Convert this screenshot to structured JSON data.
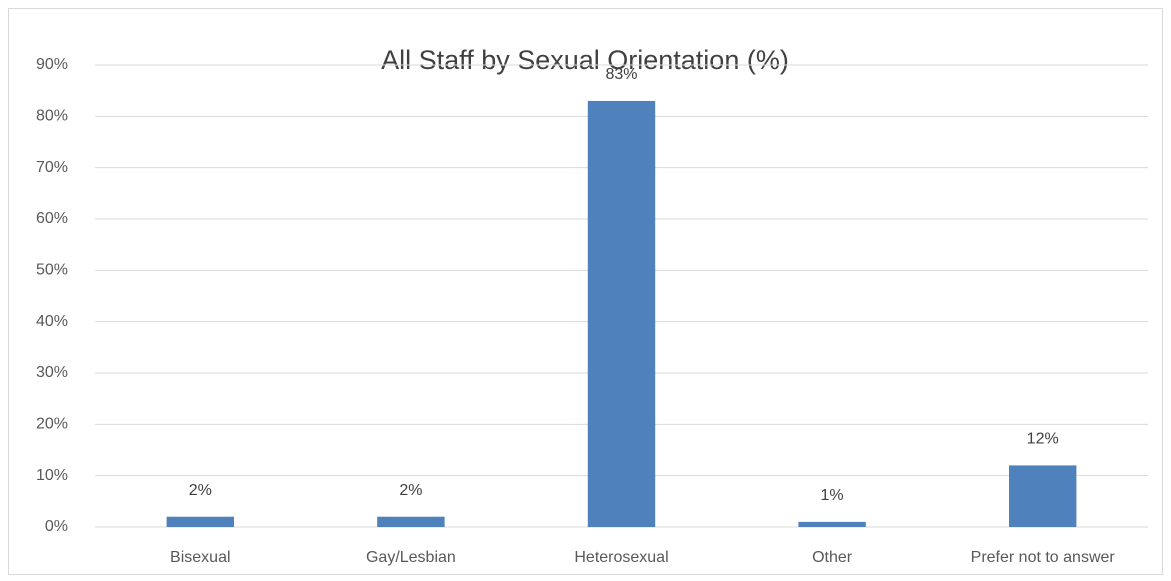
{
  "chart_data": {
    "type": "bar",
    "title": "All Staff by Sexual Orientation (%)",
    "categories": [
      "Bisexual",
      "Gay/Lesbian",
      "Heterosexual",
      "Other",
      "Prefer not to answer"
    ],
    "values": [
      2,
      2,
      83,
      1,
      12
    ],
    "value_labels": [
      "2%",
      "2%",
      "83%",
      "1%",
      "12%"
    ],
    "color": "#4f81bd",
    "ylim": [
      0,
      90
    ],
    "yticks": [
      {
        "value": 0,
        "label": "0%"
      },
      {
        "value": 10,
        "label": "10%"
      },
      {
        "value": 20,
        "label": "20%"
      },
      {
        "value": 30,
        "label": "30%"
      },
      {
        "value": 40,
        "label": "40%"
      },
      {
        "value": 50,
        "label": "50%"
      },
      {
        "value": 60,
        "label": "60%"
      },
      {
        "value": 70,
        "label": "70%"
      },
      {
        "value": 80,
        "label": "80%"
      },
      {
        "value": 90,
        "label": "90%"
      }
    ],
    "grid": true
  }
}
